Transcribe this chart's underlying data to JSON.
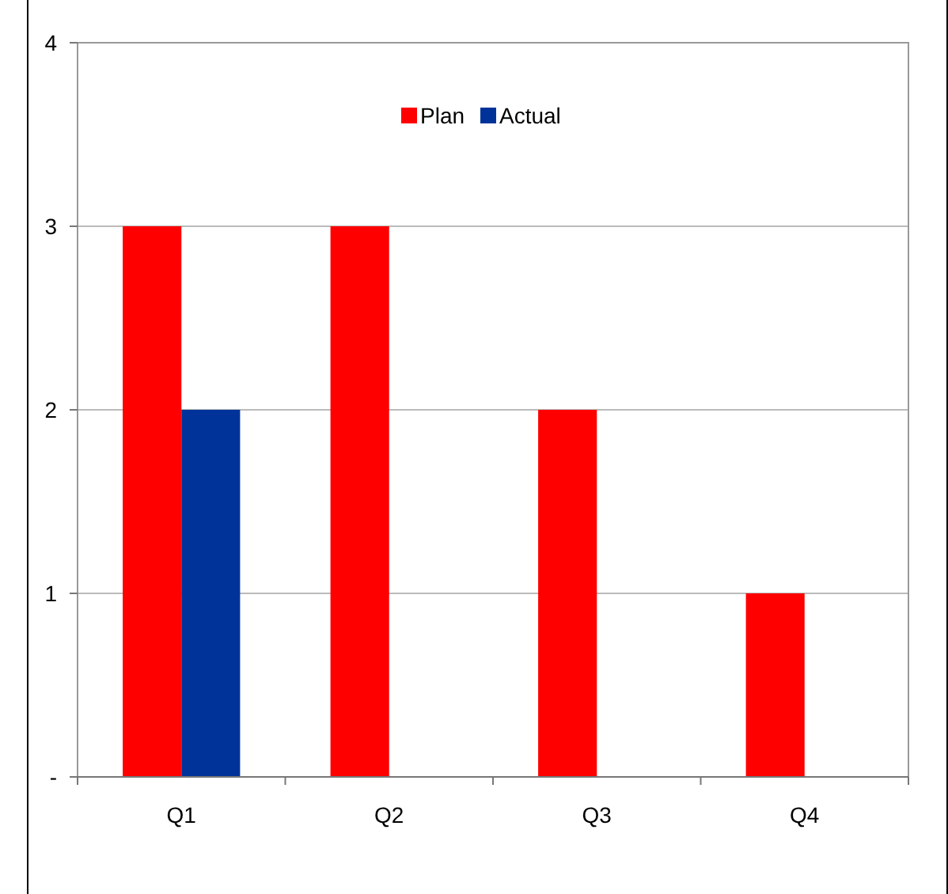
{
  "chart_data": {
    "type": "bar",
    "categories": [
      "Q1",
      "Q2",
      "Q3",
      "Q4"
    ],
    "series": [
      {
        "name": "Plan",
        "color": "#ff0000",
        "values": [
          3,
          3,
          2,
          1
        ]
      },
      {
        "name": "Actual",
        "color": "#003399",
        "values": [
          2,
          null,
          null,
          null
        ]
      }
    ],
    "ylim": [
      0,
      4
    ],
    "yticks": [
      {
        "value": 0,
        "label": "-"
      },
      1,
      2,
      3,
      4
    ],
    "grid": "y",
    "legend": "top"
  }
}
